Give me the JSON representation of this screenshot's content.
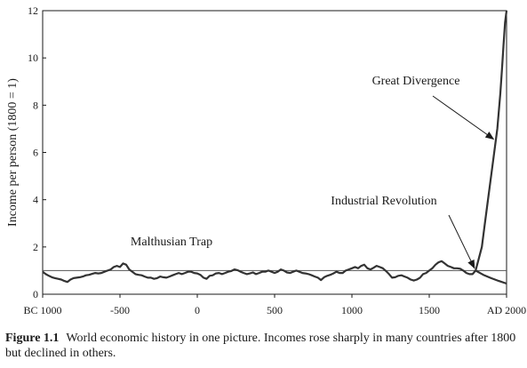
{
  "chart_data": {
    "type": "line",
    "title": "",
    "ylabel": "Income per person (1800 = 1)",
    "xlabel": "",
    "xlim": [
      -1000,
      2000
    ],
    "ylim": [
      0,
      12
    ],
    "x_ticks": [
      -1000,
      -500,
      0,
      500,
      1000,
      1500,
      2000
    ],
    "x_tick_labels": [
      "BC 1000",
      "-500",
      "0",
      "500",
      "1000",
      "1500",
      "AD 2000"
    ],
    "y_ticks": [
      0,
      2,
      4,
      6,
      8,
      10,
      12
    ],
    "y_tick_labels": [
      "0",
      "2",
      "4",
      "6",
      "8",
      "10",
      "12"
    ],
    "grid": false,
    "legend": "none",
    "reference_line": {
      "y": 1
    },
    "series": [
      {
        "x": [
          -1000,
          -980,
          -960,
          -940,
          -920,
          -900,
          -880,
          -860,
          -840,
          -820,
          -800,
          -780,
          -760,
          -740,
          -720,
          -700,
          -680,
          -660,
          -640,
          -620,
          -600,
          -580,
          -560,
          -540,
          -520,
          -500,
          -480,
          -460,
          -440,
          -420,
          -400,
          -380,
          -360,
          -340,
          -320,
          -300,
          -280,
          -260,
          -240,
          -220,
          -200,
          -180,
          -160,
          -140,
          -120,
          -100,
          -80,
          -60,
          -40,
          -20,
          0,
          20,
          40,
          60,
          80,
          100,
          120,
          140,
          160,
          180,
          200,
          220,
          240,
          260,
          280,
          300,
          320,
          340,
          360,
          380,
          400,
          420,
          440,
          460,
          480,
          500,
          520,
          540,
          560,
          580,
          600,
          620,
          640,
          660,
          680,
          700,
          720,
          740,
          760,
          780,
          800,
          820,
          840,
          860,
          880,
          900,
          920,
          940,
          960,
          980,
          1000,
          1020,
          1040,
          1060,
          1080,
          1100,
          1120,
          1140,
          1160,
          1180,
          1200,
          1220,
          1240,
          1260,
          1280,
          1300,
          1320,
          1340,
          1360,
          1380,
          1400,
          1420,
          1440,
          1460,
          1480,
          1500,
          1520,
          1540,
          1560,
          1580,
          1600,
          1620,
          1640,
          1660,
          1680,
          1700,
          1720,
          1740,
          1760,
          1780,
          1800
        ],
        "y": [
          0.95,
          0.85,
          0.78,
          0.72,
          0.68,
          0.65,
          0.62,
          0.56,
          0.52,
          0.62,
          0.68,
          0.7,
          0.72,
          0.75,
          0.8,
          0.82,
          0.86,
          0.9,
          0.88,
          0.9,
          0.95,
          1.0,
          1.05,
          1.15,
          1.2,
          1.15,
          1.3,
          1.25,
          1.05,
          0.95,
          0.85,
          0.82,
          0.8,
          0.75,
          0.7,
          0.7,
          0.65,
          0.68,
          0.75,
          0.72,
          0.7,
          0.75,
          0.8,
          0.85,
          0.9,
          0.85,
          0.9,
          0.95,
          0.95,
          0.9,
          0.88,
          0.82,
          0.7,
          0.65,
          0.78,
          0.8,
          0.88,
          0.9,
          0.85,
          0.9,
          0.95,
          0.98,
          1.05,
          1.02,
          0.95,
          0.9,
          0.85,
          0.88,
          0.92,
          0.85,
          0.9,
          0.95,
          0.95,
          1.0,
          0.95,
          0.9,
          0.95,
          1.05,
          1.0,
          0.92,
          0.9,
          0.95,
          1.0,
          0.95,
          0.9,
          0.88,
          0.85,
          0.8,
          0.75,
          0.7,
          0.6,
          0.72,
          0.78,
          0.82,
          0.88,
          0.95,
          0.9,
          0.9,
          1.0,
          1.05,
          1.1,
          1.15,
          1.1,
          1.2,
          1.25,
          1.1,
          1.05,
          1.12,
          1.2,
          1.15,
          1.1,
          0.98,
          0.85,
          0.7,
          0.72,
          0.78,
          0.8,
          0.75,
          0.7,
          0.62,
          0.58,
          0.62,
          0.7,
          0.85,
          0.9,
          1.0,
          1.1,
          1.25,
          1.35,
          1.4,
          1.3,
          1.2,
          1.15,
          1.1,
          1.1,
          1.08,
          1.0,
          0.9,
          0.85,
          0.85,
          1.0
        ]
      },
      {
        "x": [
          1800,
          1820,
          1840,
          1860,
          1880,
          1900,
          1920,
          1940,
          1960,
          1970,
          1980,
          1990,
          2000
        ],
        "y": [
          1.0,
          1.5,
          2.0,
          3.0,
          4.0,
          5.0,
          6.0,
          7.0,
          8.5,
          9.5,
          10.5,
          11.5,
          12.0
        ]
      },
      {
        "x": [
          1800,
          1850,
          1900,
          1950,
          2000
        ],
        "y": [
          1.0,
          0.82,
          0.68,
          0.56,
          0.45
        ]
      }
    ],
    "annotations": [
      {
        "text": "Malthusian Trap"
      },
      {
        "text": "Industrial Revolution",
        "points_to": {
          "x": 1800,
          "y": 1.0
        }
      },
      {
        "text": "Great Divergence",
        "points_to": {
          "x": 1930,
          "y": 6.5
        }
      }
    ]
  },
  "caption": {
    "label": "Figure 1.1",
    "text": "World economic history in one picture. Incomes rose sharply in many countries after 1800 but declined in others."
  }
}
